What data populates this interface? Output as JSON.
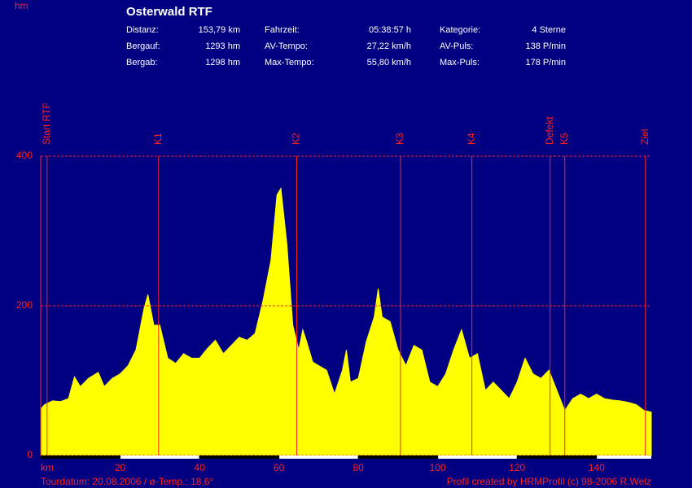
{
  "chart_data": {
    "type": "area",
    "title": "Osterwald RTF",
    "y_label": "hm",
    "x_label": "km",
    "info": [
      [
        "Distanz:",
        "153,79 km",
        "Fahrzeit:",
        "05:38:57 h",
        "Kategorie:",
        "4 Sterne"
      ],
      [
        "Bergauf:",
        "1293 hm",
        "AV-Tempo:",
        "27,22 km/h",
        "AV-Puls:",
        "138 P/min"
      ],
      [
        "Bergab:",
        "1298 hm",
        "Max-Tempo:",
        "55,80 km/h",
        "Max-Puls:",
        "178 P/min"
      ]
    ],
    "footer_left": "Tourdatum: 20.08.2006  /  ø-Temp.: 18,6°",
    "footer_right": "Profil created by HRMProfil (c) 98-2006 R.Welz",
    "color": "#ffff00",
    "xlim": [
      0,
      153.79
    ],
    "ylim": [
      0,
      400
    ],
    "xticks": [
      20,
      40,
      60,
      80,
      100,
      120,
      140
    ],
    "yticks": [
      0,
      200,
      400
    ],
    "grid": true,
    "markers": [
      {
        "label": "Start RTF",
        "x": 1.6
      },
      {
        "label": "K1",
        "x": 29.7
      },
      {
        "label": "K2",
        "x": 64.5
      },
      {
        "label": "K3",
        "x": 90.6
      },
      {
        "label": "K4",
        "x": 108.6
      },
      {
        "label": "Defekt",
        "x": 128.3
      },
      {
        "label": "K5",
        "x": 132
      },
      {
        "label": "Ziel",
        "x": 152.3
      }
    ],
    "x": [
      0,
      1,
      3,
      5,
      7,
      8.5,
      10,
      12,
      14.5,
      16,
      18,
      20,
      22,
      24,
      26,
      27,
      28.5,
      30,
      32,
      34,
      36,
      38,
      40,
      42,
      44,
      46,
      48,
      50,
      52,
      54,
      56,
      58,
      59.5,
      60.5,
      62,
      63.5,
      65,
      66,
      67,
      68.5,
      70,
      72,
      74,
      76,
      77,
      78,
      80,
      82,
      84,
      85,
      86,
      88,
      90,
      92,
      94,
      96,
      98,
      100,
      102,
      104,
      106,
      108,
      110,
      112,
      114,
      116,
      118,
      120,
      122,
      124,
      126,
      128,
      130,
      132,
      134,
      136,
      138,
      140,
      142,
      144,
      146,
      148,
      150,
      152,
      153.79
    ],
    "values": [
      62,
      68,
      73,
      72,
      76,
      105,
      92,
      103,
      111,
      92,
      103,
      109,
      120,
      141,
      196,
      215,
      174,
      174,
      130,
      123,
      136,
      130,
      130,
      143,
      154,
      136,
      147,
      158,
      154,
      163,
      207,
      261,
      348,
      357,
      283,
      174,
      141,
      168,
      152,
      125,
      120,
      114,
      82,
      114,
      141,
      98,
      103,
      152,
      185,
      223,
      185,
      179,
      141,
      120,
      147,
      141,
      98,
      92,
      109,
      141,
      168,
      130,
      136,
      87,
      98,
      87,
      76,
      98,
      130,
      109,
      103,
      114,
      87,
      60,
      76,
      82,
      76,
      82,
      76,
      74,
      73,
      71,
      68,
      60,
      58
    ]
  }
}
